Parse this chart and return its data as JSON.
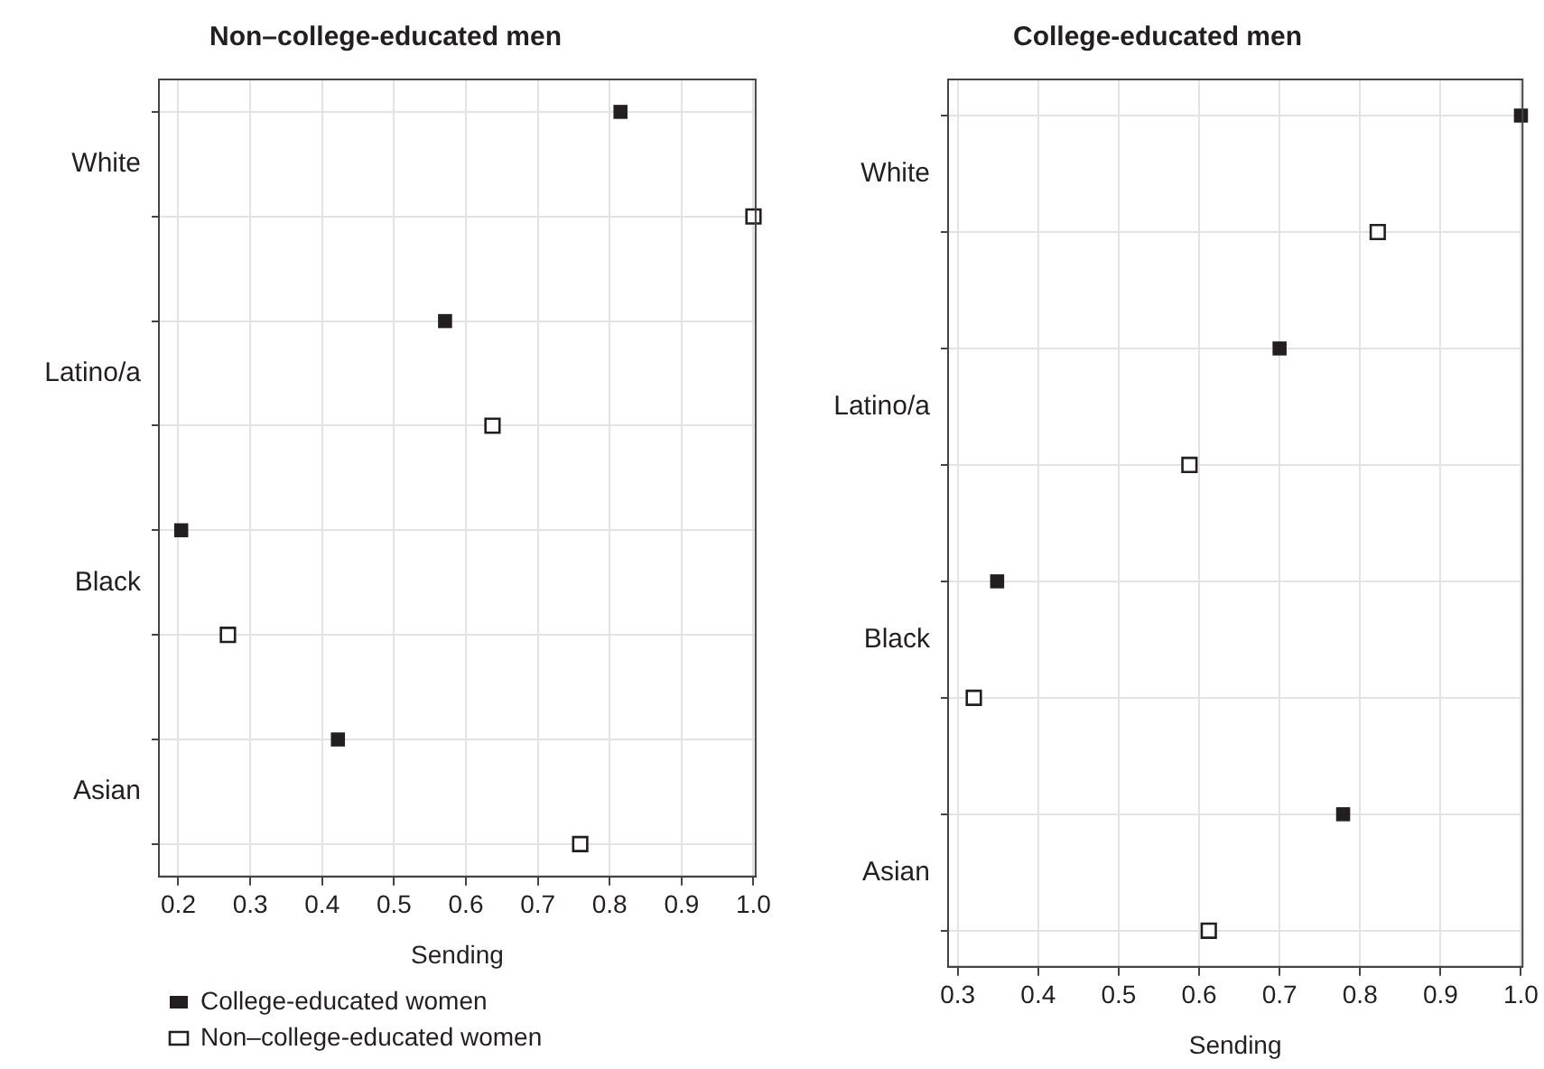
{
  "chart_data": [
    {
      "type": "scatter",
      "title": "Non–college-educated men",
      "xlabel": "Sending",
      "orientation": "horizontal",
      "categories": [
        "White",
        "Latino/a",
        "Black",
        "Asian"
      ],
      "series": [
        {
          "name": "College-educated women",
          "color": "#231f20",
          "values": [
            0.815,
            0.571,
            0.204,
            0.422
          ]
        },
        {
          "name": "Non–college-educated women",
          "color": "#231f20",
          "values": [
            1.0,
            0.637,
            0.269,
            0.759
          ]
        }
      ],
      "xlim": [
        0.173,
        1.003
      ],
      "xticks": [
        {
          "value": 0.2,
          "label": "0.2"
        },
        {
          "value": 0.3,
          "label": "0.3"
        },
        {
          "value": 0.4,
          "label": "0.4"
        },
        {
          "value": 0.5,
          "label": "0.5"
        },
        {
          "value": 0.6,
          "label": "0.6"
        },
        {
          "value": 0.7,
          "label": "0.7"
        },
        {
          "value": 0.8,
          "label": "0.8"
        },
        {
          "value": 0.9,
          "label": "0.9"
        },
        {
          "value": 1.0,
          "label": "1.0"
        }
      ],
      "grid": true,
      "marker": "square",
      "legend": "bottom left"
    },
    {
      "type": "scatter",
      "title": "College-educated men",
      "xlabel": "Sending",
      "orientation": "horizontal",
      "categories": [
        "White",
        "Latino/a",
        "Black",
        "Asian"
      ],
      "series": [
        {
          "color": "#231f20",
          "values": [
            1.0,
            0.7,
            0.349,
            0.779
          ]
        },
        {
          "color": "#231f20",
          "values": [
            0.822,
            0.588,
            0.32,
            0.612
          ]
        }
      ],
      "xlim": [
        0.288,
        1.002
      ],
      "xticks": [
        {
          "value": 0.3,
          "label": "0.3"
        },
        {
          "value": 0.4,
          "label": "0.4"
        },
        {
          "value": 0.5,
          "label": "0.5"
        },
        {
          "value": 0.6,
          "label": "0.6"
        },
        {
          "value": 0.7,
          "label": "0.7"
        },
        {
          "value": 0.8,
          "label": "0.8"
        },
        {
          "value": 0.9,
          "label": "0.9"
        },
        {
          "value": 1.0,
          "label": "1.0"
        }
      ],
      "grid": true,
      "marker": "square"
    }
  ]
}
